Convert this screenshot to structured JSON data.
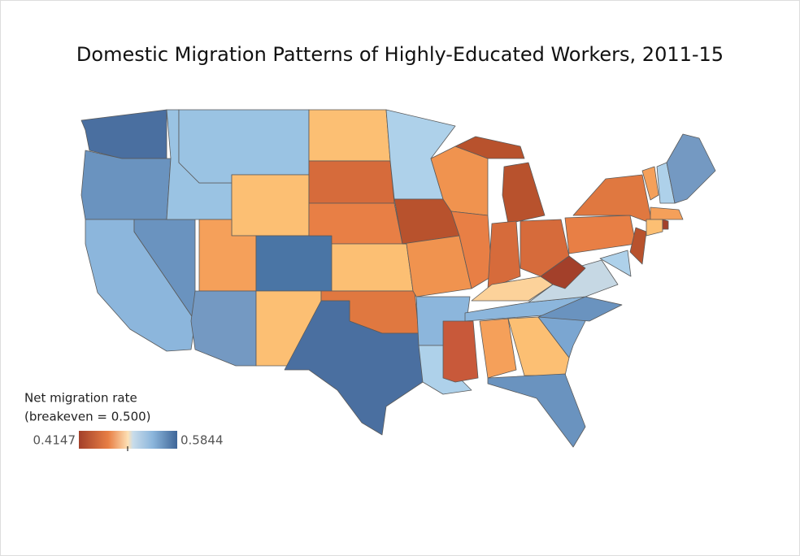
{
  "title": "Domestic Migration Patterns of Highly-Educated Workers, 2011-15",
  "legend": {
    "title": "Net migration rate",
    "subtitle": "(breakeven = 0.500)",
    "min": 0.4147,
    "max": 0.5844
  }
}
